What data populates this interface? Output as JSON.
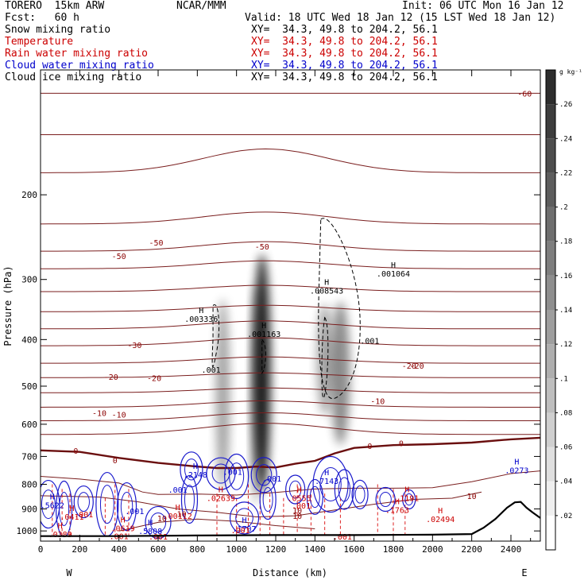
{
  "header": {
    "model": "TORERO  15km ARW",
    "org": "NCAR/MMM",
    "init": "Init: 06 UTC Mon 16 Jan 12",
    "fcst": "Fcst:   60 h",
    "valid": "Valid: 18 UTC Wed 18 Jan 12 (15 LST Wed 18 Jan 12)"
  },
  "fields": [
    {
      "name": "Snow mixing ratio",
      "xy": "XY=  34.3, 49.8 to 204.2, 56.1",
      "color": "#000000"
    },
    {
      "name": "Temperature",
      "xy": "XY=  34.3, 49.8 to 204.2, 56.1",
      "color": "#cc0000"
    },
    {
      "name": "Rain water mixing ratio",
      "xy": "XY=  34.3, 49.8 to 204.2, 56.1",
      "color": "#cc0000"
    },
    {
      "name": "Cloud water mixing ratio",
      "xy": "XY=  34.3, 49.8 to 204.2, 56.1",
      "color": "#0000cc"
    },
    {
      "name": "Cloud ice mixing ratio",
      "xy": "XY=  34.3, 49.8 to 204.2, 56.1",
      "color": "#000000"
    }
  ],
  "colors": {
    "temperature": "#7a1e1e",
    "rain": "#dd2222",
    "cloud_water": "#1a1acc",
    "ice": "#000000",
    "terrain": "#000000"
  },
  "chart_data": {
    "type": "cross-section",
    "xlabel": "Distance (km)",
    "ylabel": "Pressure (hPa)",
    "xlim": [
      0,
      2550
    ],
    "ylim": [
      1050,
      110
    ],
    "y_scale": "log",
    "x_ticks": [
      0,
      200,
      400,
      600,
      800,
      1000,
      1200,
      1400,
      1600,
      1800,
      2000,
      2200,
      2400
    ],
    "y_ticks": [
      200,
      300,
      400,
      500,
      600,
      700,
      800,
      900,
      1000
    ],
    "end_left": "W",
    "end_right": "E",
    "colorbar": {
      "unit": "g kg⁻¹",
      "levels": [
        0.02,
        0.04,
        0.06,
        0.08,
        0.1,
        0.12,
        0.14,
        0.16,
        0.18,
        0.2,
        0.22,
        0.24,
        0.26
      ],
      "labels": [
        ".02",
        ".04",
        ".06",
        ".08",
        ".1",
        ".12",
        ".14",
        ".16",
        ".18",
        ".2",
        ".22",
        ".24",
        ".26"
      ]
    },
    "temperature_labels": [
      {
        "text": "-60",
        "x": 2470,
        "p": 123
      },
      {
        "text": "-50",
        "x": 400,
        "p": 268
      },
      {
        "text": "-50",
        "x": 590,
        "p": 251
      },
      {
        "text": "-50",
        "x": 1130,
        "p": 256
      },
      {
        "text": "-30",
        "x": 480,
        "p": 410
      },
      {
        "text": "-20",
        "x": 360,
        "p": 478
      },
      {
        "text": "-20",
        "x": 580,
        "p": 480
      },
      {
        "text": "-20",
        "x": 1880,
        "p": 453
      },
      {
        "text": "-20",
        "x": 1920,
        "p": 453
      },
      {
        "text": "-10",
        "x": 300,
        "p": 568
      },
      {
        "text": "-10",
        "x": 400,
        "p": 572
      },
      {
        "text": "-10",
        "x": 1720,
        "p": 537
      },
      {
        "text": "0",
        "x": 180,
        "p": 680
      },
      {
        "text": "0",
        "x": 380,
        "p": 712
      },
      {
        "text": "0",
        "x": 1680,
        "p": 665
      },
      {
        "text": "0",
        "x": 1840,
        "p": 656
      },
      {
        "text": "10",
        "x": 1310,
        "p": 905
      },
      {
        "text": "10",
        "x": 1310,
        "p": 929
      },
      {
        "text": "10",
        "x": 620,
        "p": 940
      },
      {
        "text": "10",
        "x": 720,
        "p": 920
      },
      {
        "text": "10",
        "x": 2200,
        "p": 845
      }
    ],
    "maxima": [
      {
        "label": "H",
        "value": ".003336",
        "x": 820,
        "p": 355,
        "color": "#000000"
      },
      {
        "label": "H",
        "value": ".001163",
        "x": 1140,
        "p": 382,
        "color": "#000000"
      },
      {
        "label": "H",
        "value": ".008543",
        "x": 1460,
        "p": 310,
        "color": "#000000"
      },
      {
        "label": "H",
        "value": ".001064",
        "x": 1800,
        "p": 286,
        "color": "#000000"
      },
      {
        "label": "H",
        "value": ".2148",
        "x": 790,
        "p": 749,
        "color": "#0000cc"
      },
      {
        "label": "H",
        "value": ".7143",
        "x": 1460,
        "p": 772,
        "color": "#0000cc"
      },
      {
        "label": "H",
        "value": ".5622",
        "x": 60,
        "p": 866,
        "color": "#0000cc"
      },
      {
        "label": "H",
        "value": ".1707",
        "x": 1040,
        "p": 970,
        "color": "#0000cc"
      },
      {
        "label": "H",
        "value": ".5808",
        "x": 560,
        "p": 980,
        "color": "#0000cc"
      },
      {
        "label": "H",
        "value": ".0273",
        "x": 2430,
        "p": 733,
        "color": "#0000cc"
      },
      {
        "label": "H",
        "value": ".02639",
        "x": 920,
        "p": 837,
        "color": "#cc0000"
      },
      {
        "label": "H",
        "value": ".0555",
        "x": 1320,
        "p": 838,
        "color": "#cc0000"
      },
      {
        "label": "H",
        "value": ".1191",
        "x": 1870,
        "p": 838,
        "color": "#cc0000"
      },
      {
        "label": "H",
        "value": ".1763",
        "x": 1820,
        "p": 887,
        "color": "#cc0000"
      },
      {
        "label": "H",
        "value": ".00112",
        "x": 700,
        "p": 912,
        "color": "#cc0000"
      },
      {
        "label": "H",
        "value": ".02494",
        "x": 2040,
        "p": 926,
        "color": "#cc0000"
      },
      {
        "label": "H",
        "value": ".0619",
        "x": 420,
        "p": 968,
        "color": "#cc0000"
      },
      {
        "label": "H",
        "value": ".0389",
        "x": 100,
        "p": 995,
        "color": "#cc0000"
      },
      {
        "label": "H",
        "value": ".0411",
        "x": 160,
        "p": 915,
        "color": "#cc0000"
      }
    ],
    "small_labels": [
      {
        "text": ".001",
        "x": 870,
        "p": 462,
        "color": "#000000"
      },
      {
        "text": ".001",
        "x": 1680,
        "p": 402,
        "color": "#000000"
      },
      {
        "text": ".001",
        "x": 980,
        "p": 752,
        "color": "#0000cc"
      },
      {
        "text": ".001",
        "x": 1180,
        "p": 778,
        "color": "#0000cc"
      },
      {
        "text": ".001",
        "x": 700,
        "p": 820,
        "color": "#0000cc"
      },
      {
        "text": ".001",
        "x": 480,
        "p": 908,
        "color": "#0000cc"
      },
      {
        "text": ".001",
        "x": 1330,
        "p": 885,
        "color": "#cc0000"
      },
      {
        "text": ".001",
        "x": 1020,
        "p": 995,
        "color": "#cc0000"
      },
      {
        "text": ".001",
        "x": 1540,
        "p": 1027,
        "color": "#cc0000"
      },
      {
        "text": ".001",
        "x": 400,
        "p": 1025,
        "color": "#cc0000"
      },
      {
        "text": ".001",
        "x": 600,
        "p": 1027,
        "color": "#cc0000"
      },
      {
        "text": ".001",
        "x": 220,
        "p": 922,
        "color": "#cc0000"
      }
    ],
    "terrain": {
      "x": [
        0,
        400,
        800,
        1200,
        1600,
        2000,
        2200,
        2260,
        2320,
        2380,
        2420,
        2450,
        2480,
        2510,
        2550
      ],
      "p": [
        1025,
        1025,
        1022,
        1020,
        1020,
        1018,
        1015,
        985,
        945,
        895,
        872,
        870,
        895,
        915,
        940
      ]
    }
  }
}
